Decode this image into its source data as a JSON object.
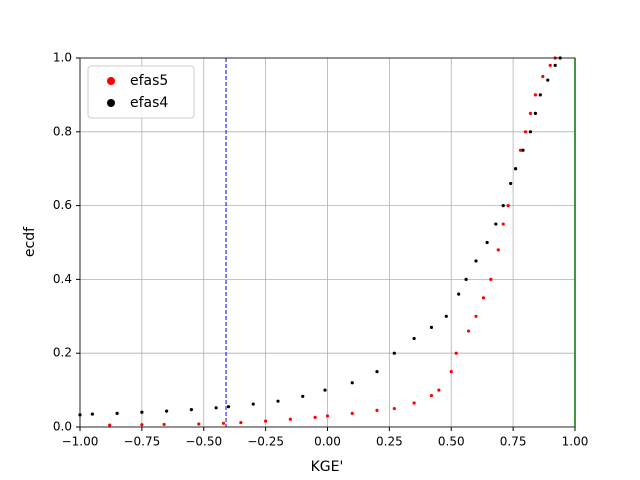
{
  "chart_data": {
    "type": "scatter",
    "xlabel": "KGE'",
    "ylabel": "ecdf",
    "xlim": [
      -1.0,
      1.0
    ],
    "ylim": [
      0.0,
      1.0
    ],
    "xticks": [
      {
        "value": -1.0,
        "label": "−1.00"
      },
      {
        "value": -0.75,
        "label": "−0.75"
      },
      {
        "value": -0.5,
        "label": "−0.50"
      },
      {
        "value": -0.25,
        "label": "−0.25"
      },
      {
        "value": 0.0,
        "label": "0.00"
      },
      {
        "value": 0.25,
        "label": "0.25"
      },
      {
        "value": 0.5,
        "label": "0.50"
      },
      {
        "value": 0.75,
        "label": "0.75"
      },
      {
        "value": 1.0,
        "label": "1.00"
      }
    ],
    "yticks": [
      {
        "value": 0.0,
        "label": "0.0"
      },
      0.2,
      0.4,
      0.6,
      0.8,
      {
        "value": 1.0,
        "label": "1.0"
      }
    ],
    "grid": true,
    "legend": "upper left",
    "series": [
      {
        "name": "efas5",
        "color": "#ff0000",
        "x": [
          -0.88,
          -0.75,
          -0.66,
          -0.52,
          -0.42,
          -0.35,
          -0.25,
          -0.15,
          -0.05,
          0.0,
          0.1,
          0.2,
          0.27,
          0.35,
          0.42,
          0.45,
          0.5,
          0.52,
          0.57,
          0.6,
          0.63,
          0.66,
          0.69,
          0.71,
          0.73,
          0.76,
          0.78,
          0.8,
          0.82,
          0.84,
          0.87,
          0.9,
          0.92
        ],
        "values": [
          0.005,
          0.006,
          0.007,
          0.008,
          0.01,
          0.012,
          0.016,
          0.021,
          0.026,
          0.03,
          0.037,
          0.045,
          0.05,
          0.065,
          0.085,
          0.1,
          0.15,
          0.2,
          0.26,
          0.3,
          0.35,
          0.4,
          0.48,
          0.55,
          0.6,
          0.7,
          0.75,
          0.8,
          0.85,
          0.9,
          0.95,
          0.98,
          1.0
        ]
      },
      {
        "name": "efas4",
        "color": "#000000",
        "x": [
          -1.0,
          -0.95,
          -0.85,
          -0.75,
          -0.65,
          -0.55,
          -0.45,
          -0.4,
          -0.3,
          -0.2,
          -0.1,
          -0.01,
          0.1,
          0.2,
          0.27,
          0.35,
          0.42,
          0.48,
          0.53,
          0.56,
          0.6,
          0.645,
          0.68,
          0.71,
          0.74,
          0.76,
          0.79,
          0.82,
          0.84,
          0.86,
          0.89,
          0.92,
          0.94
        ],
        "values": [
          0.033,
          0.035,
          0.037,
          0.04,
          0.043,
          0.047,
          0.052,
          0.055,
          0.062,
          0.07,
          0.083,
          0.1,
          0.12,
          0.15,
          0.2,
          0.24,
          0.27,
          0.3,
          0.36,
          0.4,
          0.45,
          0.5,
          0.55,
          0.6,
          0.66,
          0.7,
          0.75,
          0.8,
          0.85,
          0.9,
          0.94,
          0.98,
          1.0
        ]
      }
    ],
    "vlines": [
      {
        "x": -0.41,
        "color": "#0000ff",
        "dashed": true
      },
      {
        "x": 1.0,
        "color": "#00ff00",
        "dashed": false
      }
    ]
  }
}
